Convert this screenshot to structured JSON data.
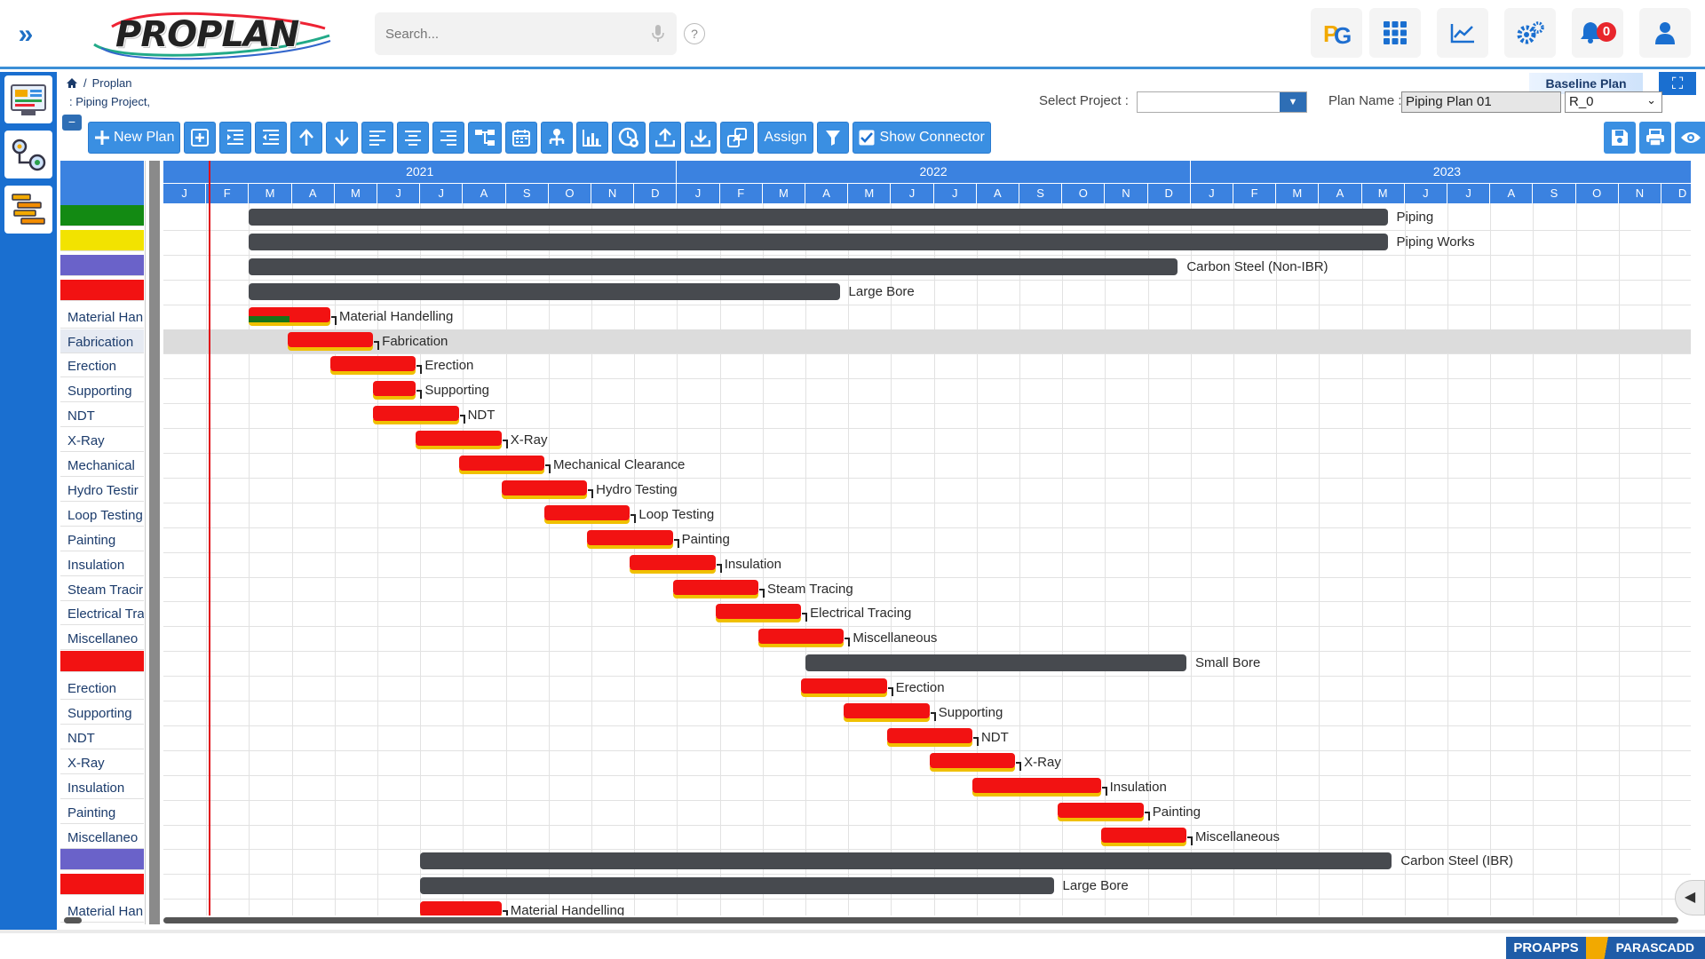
{
  "app": {
    "logo_text": "PROPLAN"
  },
  "search": {
    "placeholder": "Search..."
  },
  "top_buttons": {
    "notifications_count": "0",
    "help": "?"
  },
  "breadcrumb": {
    "home": "Proplan",
    "separator": "/",
    "project": ": Piping Project,"
  },
  "header": {
    "baseline_label": "Baseline Plan",
    "select_project_label": "Select Project :",
    "select_project_value": "",
    "plan_name_label": "Plan Name :",
    "plan_name_value": "Piping Plan 01",
    "revision_value": "R_0"
  },
  "toolbar": {
    "new_plan": "New Plan",
    "assign": "Assign",
    "show_connector": "Show Connector"
  },
  "timeline": {
    "years": [
      "2021",
      "2022",
      "2023"
    ],
    "months": [
      "J",
      "F",
      "M",
      "A",
      "M",
      "J",
      "J",
      "A",
      "S",
      "O",
      "N",
      "D",
      "J",
      "F",
      "M",
      "A",
      "M",
      "J",
      "J",
      "A",
      "S",
      "O",
      "N",
      "D",
      "J",
      "F",
      "M",
      "A",
      "M",
      "J",
      "J",
      "A",
      "S",
      "O",
      "N",
      "D"
    ]
  },
  "left_column": [
    {
      "label": "",
      "color": "#138a13"
    },
    {
      "label": "",
      "color": "#f2e300"
    },
    {
      "label": "",
      "color": "#6a62c9"
    },
    {
      "label": "",
      "color": "#f21212"
    },
    {
      "label": "Material Han"
    },
    {
      "label": "Fabrication"
    },
    {
      "label": "Erection"
    },
    {
      "label": "Supporting"
    },
    {
      "label": "NDT"
    },
    {
      "label": "X-Ray"
    },
    {
      "label": "Mechanical"
    },
    {
      "label": "Hydro Testir"
    },
    {
      "label": "Loop Testing"
    },
    {
      "label": "Painting"
    },
    {
      "label": "Insulation"
    },
    {
      "label": "Steam Tracir"
    },
    {
      "label": "Electrical Tra"
    },
    {
      "label": "Miscellaneo"
    },
    {
      "label": "",
      "color": "#f21212"
    },
    {
      "label": "Erection"
    },
    {
      "label": "Supporting"
    },
    {
      "label": "NDT"
    },
    {
      "label": "X-Ray"
    },
    {
      "label": "Insulation"
    },
    {
      "label": "Painting"
    },
    {
      "label": "Miscellaneo"
    },
    {
      "label": "",
      "color": "#6a62c9"
    },
    {
      "label": "",
      "color": "#f21212"
    },
    {
      "label": "Material Han"
    }
  ],
  "tasks": [
    {
      "name": "Piping",
      "kind": "summary",
      "start": 2.0,
      "end": 28.6
    },
    {
      "name": "Piping Works",
      "kind": "summary",
      "start": 2.0,
      "end": 28.6
    },
    {
      "name": "Carbon Steel (Non-IBR)",
      "kind": "summary",
      "start": 2.0,
      "end": 23.7
    },
    {
      "name": "Large Bore",
      "kind": "summary",
      "start": 2.0,
      "end": 15.8
    },
    {
      "name": "Material Handelling",
      "kind": "task",
      "start": 2.0,
      "end": 3.9,
      "progress": 0.5
    },
    {
      "name": "Fabrication",
      "kind": "task",
      "start": 2.9,
      "end": 4.9,
      "progress": 0
    },
    {
      "name": "Erection",
      "kind": "task",
      "start": 3.9,
      "end": 5.9,
      "progress": 0
    },
    {
      "name": "Supporting",
      "kind": "task",
      "start": 4.9,
      "end": 5.9,
      "progress": 0
    },
    {
      "name": "NDT",
      "kind": "task",
      "start": 4.9,
      "end": 6.9,
      "progress": 0
    },
    {
      "name": "X-Ray",
      "kind": "task",
      "start": 5.9,
      "end": 7.9,
      "progress": 0
    },
    {
      "name": "Mechanical Clearance",
      "kind": "task",
      "start": 6.9,
      "end": 8.9,
      "progress": 0
    },
    {
      "name": "Hydro Testing",
      "kind": "task",
      "start": 7.9,
      "end": 9.9,
      "progress": 0
    },
    {
      "name": "Loop Testing",
      "kind": "task",
      "start": 8.9,
      "end": 10.9,
      "progress": 0
    },
    {
      "name": "Painting",
      "kind": "task",
      "start": 9.9,
      "end": 11.9,
      "progress": 0
    },
    {
      "name": "Insulation",
      "kind": "task",
      "start": 10.9,
      "end": 12.9,
      "progress": 0
    },
    {
      "name": "Steam Tracing",
      "kind": "task",
      "start": 11.9,
      "end": 13.9,
      "progress": 0
    },
    {
      "name": "Electrical Tracing",
      "kind": "task",
      "start": 12.9,
      "end": 14.9,
      "progress": 0
    },
    {
      "name": "Miscellaneous",
      "kind": "task",
      "start": 13.9,
      "end": 15.9,
      "progress": 0
    },
    {
      "name": "Small Bore",
      "kind": "summary",
      "start": 15.0,
      "end": 23.9
    },
    {
      "name": "Erection",
      "kind": "task",
      "start": 14.9,
      "end": 16.9,
      "progress": 0
    },
    {
      "name": "Supporting",
      "kind": "task",
      "start": 15.9,
      "end": 17.9,
      "progress": 0
    },
    {
      "name": "NDT",
      "kind": "task",
      "start": 16.9,
      "end": 18.9,
      "progress": 0
    },
    {
      "name": "X-Ray",
      "kind": "task",
      "start": 17.9,
      "end": 19.9,
      "progress": 0
    },
    {
      "name": "Insulation",
      "kind": "task",
      "start": 18.9,
      "end": 21.9,
      "progress": 0
    },
    {
      "name": "Painting",
      "kind": "task",
      "start": 20.9,
      "end": 22.9,
      "progress": 0
    },
    {
      "name": "Miscellaneous",
      "kind": "task",
      "start": 21.9,
      "end": 23.9,
      "progress": 0
    },
    {
      "name": "Carbon Steel (IBR)",
      "kind": "summary",
      "start": 6.0,
      "end": 28.7
    },
    {
      "name": "Large Bore",
      "kind": "summary",
      "start": 6.0,
      "end": 20.8
    },
    {
      "name": "Material Handelling",
      "kind": "task",
      "start": 6.0,
      "end": 7.9,
      "progress": 0
    }
  ],
  "footer": {
    "brand_left": "PROAPPS",
    "brand_right": "PARASCADD"
  }
}
